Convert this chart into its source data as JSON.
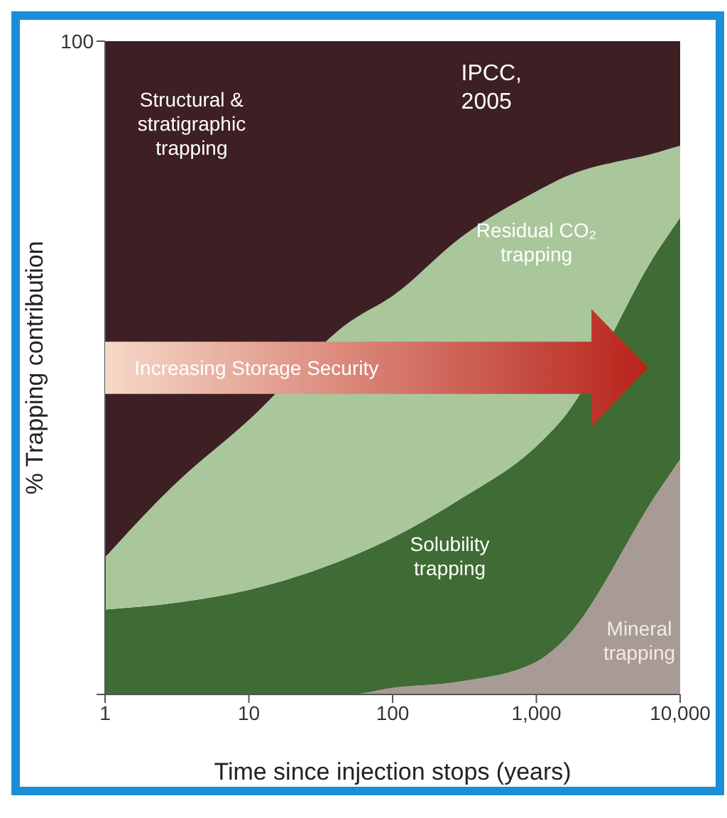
{
  "chart_data": {
    "type": "area",
    "stacked": true,
    "xlabel": "Time since injection stops (years)",
    "ylabel": "% Trapping contribution",
    "x": [
      1,
      3,
      10,
      50,
      100,
      300,
      1000,
      1500,
      7000,
      10000
    ],
    "series": [
      {
        "name": "Mineral trapping",
        "color": "#a89a94",
        "values": [
          0,
          0,
          0,
          0,
          1,
          2,
          5,
          8,
          31,
          36
        ]
      },
      {
        "name": "Solubility trapping",
        "color": "#3f6b34",
        "values": [
          13,
          14,
          16,
          21,
          23,
          28,
          33,
          34,
          37,
          37
        ]
      },
      {
        "name": "Residual CO₂ trapping",
        "color": "#a9c79a",
        "values": [
          8,
          18,
          26,
          36,
          37,
          40,
          39,
          37,
          15,
          11
        ]
      },
      {
        "name": "Structural & stratigraphic trapping",
        "color": "#3d1f24",
        "values": [
          79,
          68,
          58,
          43,
          39,
          30,
          23,
          21,
          17,
          16
        ]
      }
    ],
    "log": "x",
    "xlim": [
      1,
      10000
    ],
    "xticks": [
      1,
      10,
      100,
      {
        "value": 1000,
        "label": "1,000"
      },
      {
        "value": 10000,
        "label": "10,000"
      }
    ],
    "ylim": [
      0,
      100
    ],
    "yticks": [
      0,
      100
    ],
    "annotations": [
      "Increasing Storage Security",
      "IPCC, 2005"
    ]
  }
}
